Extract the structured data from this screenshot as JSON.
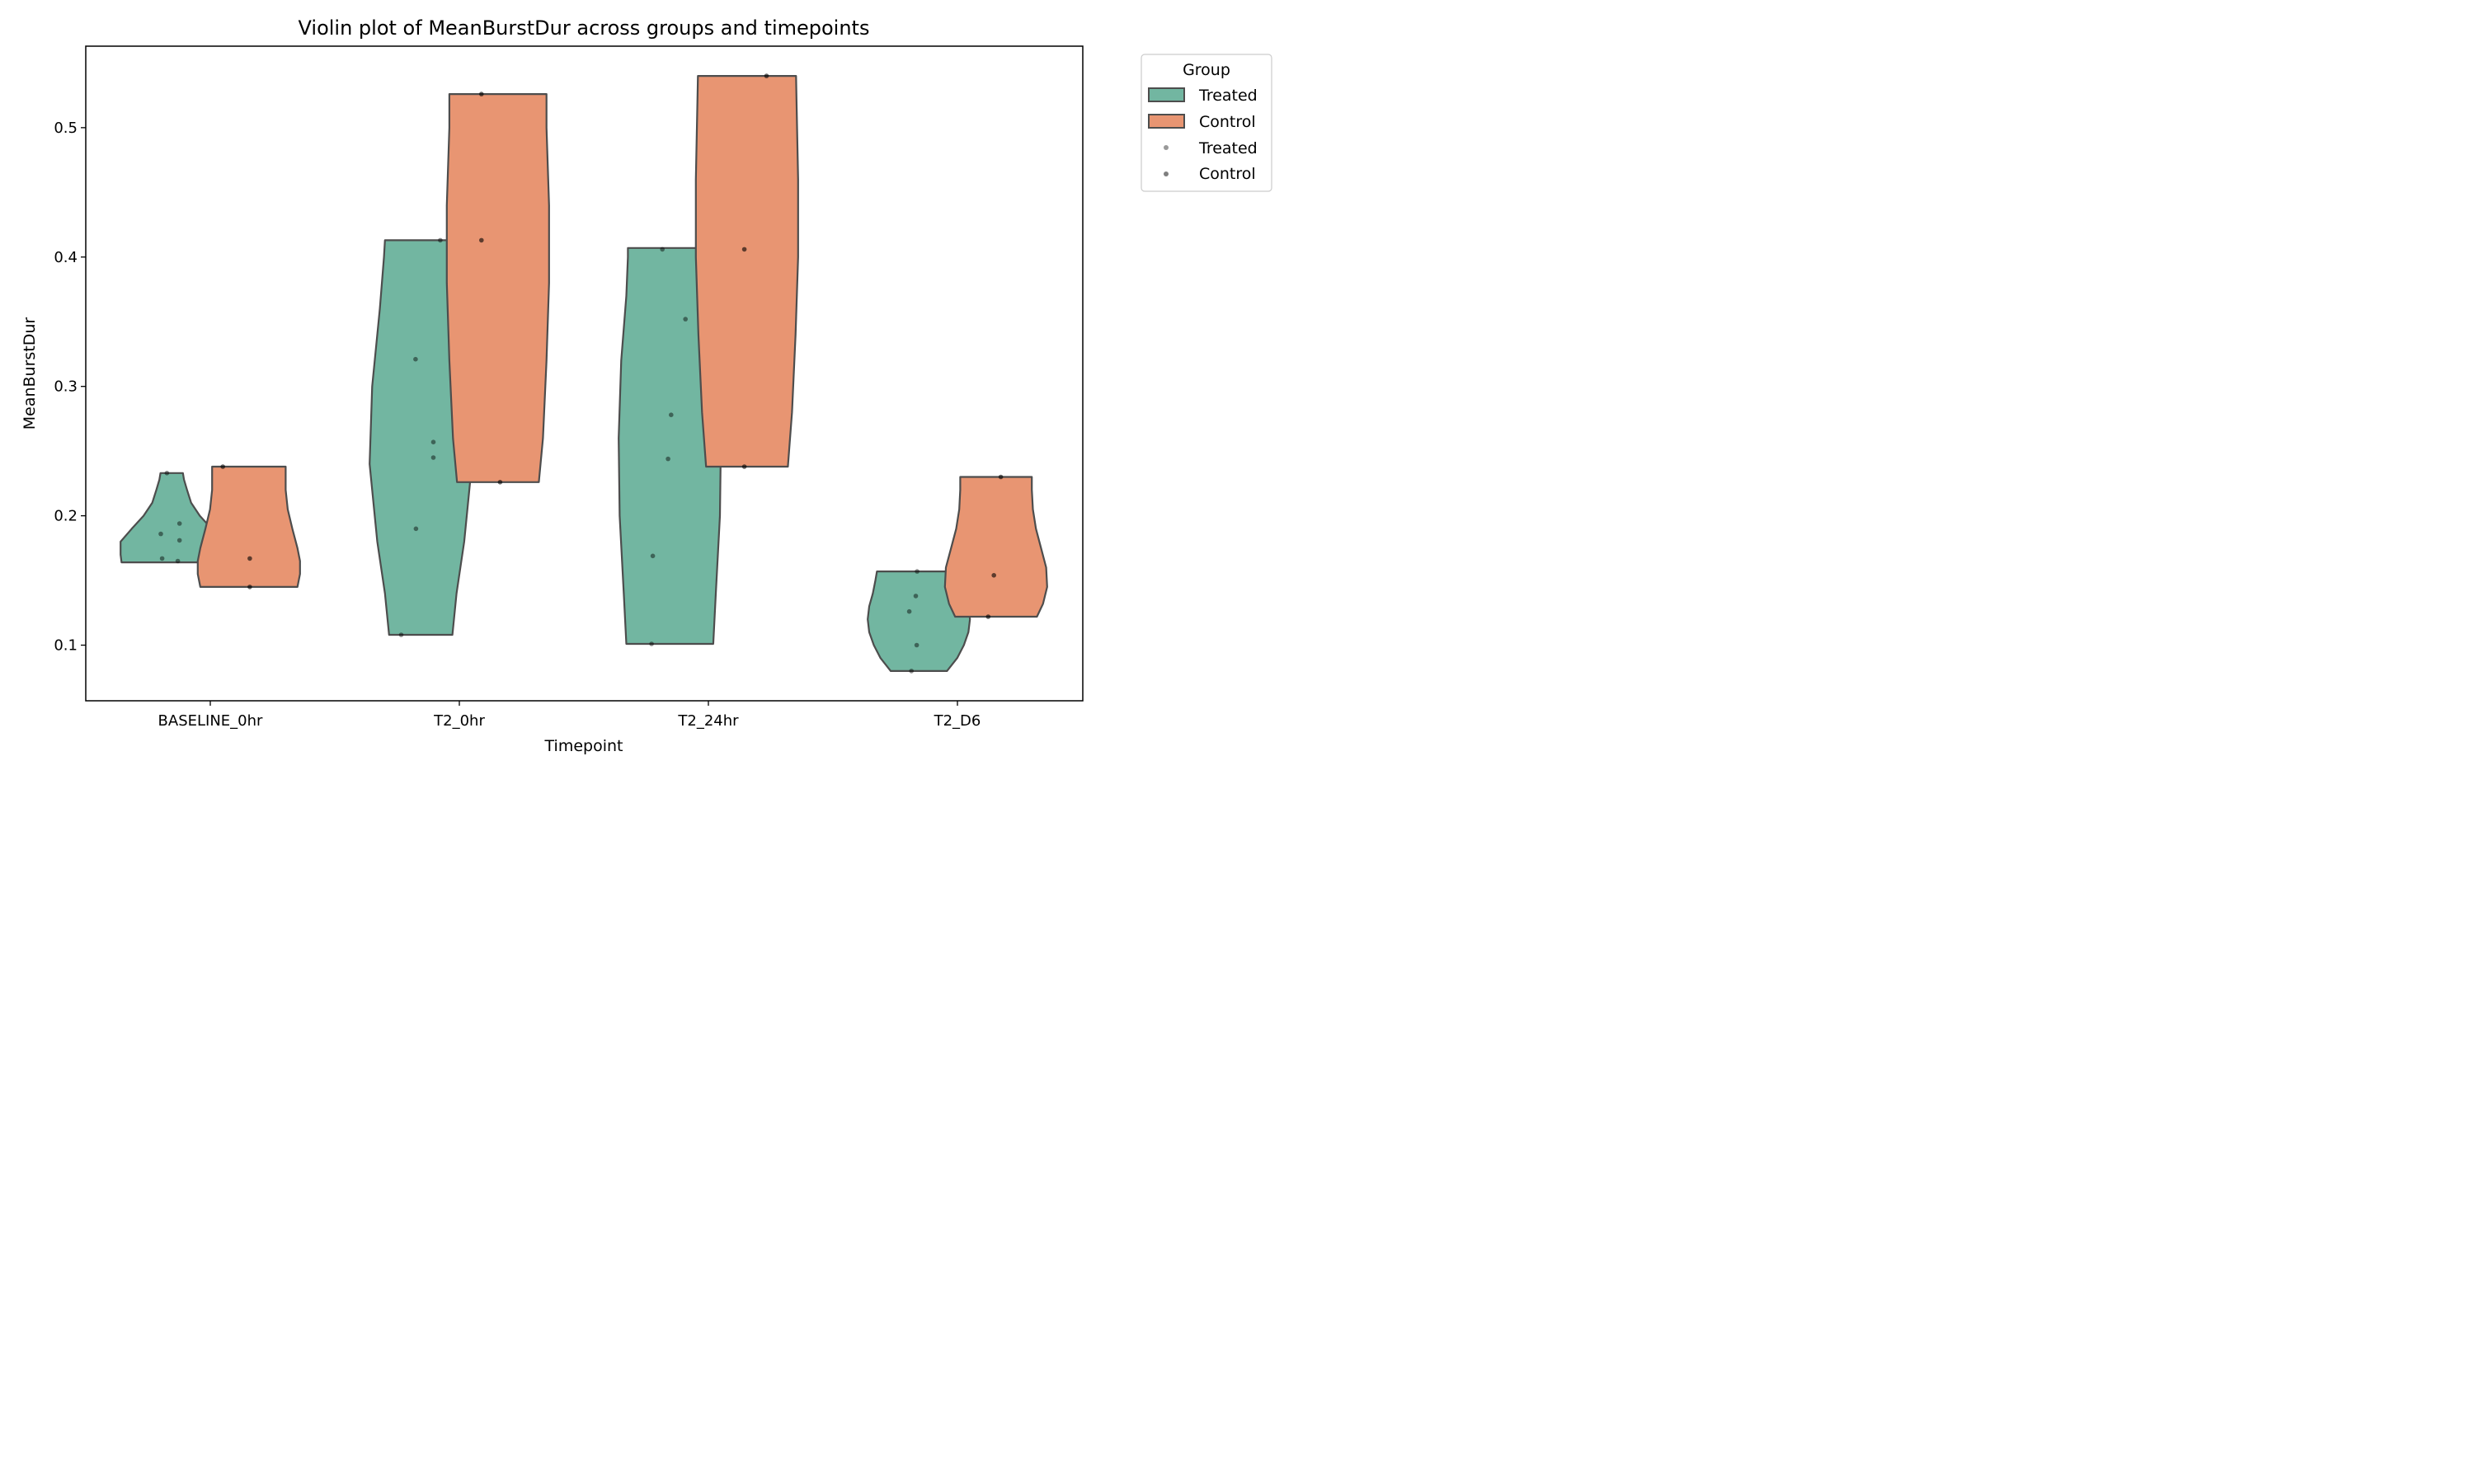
{
  "chart_data": {
    "type": "violin",
    "title": "Violin plot of MeanBurstDur across groups and timepoints",
    "xlabel": "Timepoint",
    "ylabel": "MeanBurstDur",
    "categories": [
      "BASELINE_0hr",
      "T2_0hr",
      "T2_24hr",
      "T2_D6"
    ],
    "ylim": [
      0.057,
      0.563
    ],
    "yticks": [
      0.1,
      0.2,
      0.3,
      0.4,
      0.5
    ],
    "ytick_labels": [
      "0.1",
      "0.2",
      "0.3",
      "0.4",
      "0.5"
    ],
    "grid": false,
    "legend": {
      "title": "Group",
      "placement": "outside-right-top",
      "entries": [
        {
          "label": "Treated",
          "kind": "patch"
        },
        {
          "label": "Control",
          "kind": "patch"
        },
        {
          "label": "Treated",
          "kind": "point"
        },
        {
          "label": "Control",
          "kind": "point"
        }
      ]
    },
    "series": [
      {
        "name": "Treated",
        "color": "#72b6a1",
        "violins": [
          {
            "category": "BASELINE_0hr",
            "min": 0.164,
            "max": 0.233,
            "profile": [
              [
                0.164,
                0.98
              ],
              [
                0.17,
                1.0
              ],
              [
                0.18,
                1.0
              ],
              [
                0.19,
                0.78
              ],
              [
                0.2,
                0.55
              ],
              [
                0.21,
                0.38
              ],
              [
                0.22,
                0.3
              ],
              [
                0.228,
                0.24
              ],
              [
                0.233,
                0.22
              ]
            ],
            "points": [
              [
                -0.25,
                0.186
              ],
              [
                0.18,
                0.194
              ],
              [
                0.18,
                0.181
              ],
              [
                -0.22,
                0.167
              ],
              [
                0.14,
                0.165
              ],
              [
                -0.11,
                0.233
              ]
            ]
          },
          {
            "category": "T2_0hr",
            "min": 0.108,
            "max": 0.413,
            "profile": [
              [
                0.108,
                0.62
              ],
              [
                0.14,
                0.7
              ],
              [
                0.18,
                0.85
              ],
              [
                0.24,
                1.0
              ],
              [
                0.3,
                0.95
              ],
              [
                0.36,
                0.8
              ],
              [
                0.4,
                0.72
              ],
              [
                0.413,
                0.7
              ]
            ],
            "points": [
              [
                -0.45,
                0.108
              ],
              [
                -0.11,
                0.19
              ],
              [
                0.29,
                0.245
              ],
              [
                0.29,
                0.257
              ],
              [
                -0.12,
                0.321
              ],
              [
                0.45,
                0.413
              ]
            ]
          },
          {
            "category": "T2_24hr",
            "min": 0.101,
            "max": 0.407,
            "profile": [
              [
                0.101,
                0.85
              ],
              [
                0.14,
                0.9
              ],
              [
                0.2,
                0.98
              ],
              [
                0.26,
                1.0
              ],
              [
                0.32,
                0.95
              ],
              [
                0.37,
                0.85
              ],
              [
                0.4,
                0.82
              ],
              [
                0.407,
                0.82
              ]
            ],
            "points": [
              [
                -0.42,
                0.101
              ],
              [
                -0.39,
                0.169
              ],
              [
                -0.04,
                0.244
              ],
              [
                0.03,
                0.278
              ],
              [
                0.36,
                0.352
              ],
              [
                -0.17,
                0.406
              ]
            ]
          },
          {
            "category": "T2_D6",
            "min": 0.08,
            "max": 0.157,
            "profile": [
              [
                0.08,
                0.55
              ],
              [
                0.09,
                0.75
              ],
              [
                0.1,
                0.88
              ],
              [
                0.11,
                0.97
              ],
              [
                0.12,
                1.0
              ],
              [
                0.13,
                0.97
              ],
              [
                0.14,
                0.9
              ],
              [
                0.15,
                0.85
              ],
              [
                0.157,
                0.82
              ]
            ],
            "points": [
              [
                -0.17,
                0.08
              ],
              [
                -0.05,
                0.1
              ],
              [
                -0.22,
                0.126
              ],
              [
                -0.07,
                0.138
              ],
              [
                -0.04,
                0.157
              ]
            ]
          }
        ]
      },
      {
        "name": "Control",
        "color": "#e89572",
        "violins": [
          {
            "category": "BASELINE_0hr",
            "min": 0.145,
            "max": 0.238,
            "profile": [
              [
                0.145,
                0.95
              ],
              [
                0.155,
                1.0
              ],
              [
                0.165,
                1.0
              ],
              [
                0.175,
                0.95
              ],
              [
                0.19,
                0.85
              ],
              [
                0.205,
                0.76
              ],
              [
                0.22,
                0.72
              ],
              [
                0.238,
                0.72
              ]
            ],
            "points": [
              [
                0.02,
                0.145
              ],
              [
                0.02,
                0.167
              ],
              [
                -0.6,
                0.238
              ]
            ]
          },
          {
            "category": "T2_0hr",
            "min": 0.226,
            "max": 0.526,
            "profile": [
              [
                0.226,
                0.8
              ],
              [
                0.26,
                0.88
              ],
              [
                0.32,
                0.95
              ],
              [
                0.38,
                1.0
              ],
              [
                0.44,
                1.0
              ],
              [
                0.5,
                0.95
              ],
              [
                0.526,
                0.95
              ]
            ],
            "points": [
              [
                0.05,
                0.226
              ],
              [
                -0.38,
                0.413
              ],
              [
                -0.38,
                0.526
              ]
            ]
          },
          {
            "category": "T2_24hr",
            "min": 0.238,
            "max": 0.54,
            "profile": [
              [
                0.238,
                0.8
              ],
              [
                0.28,
                0.88
              ],
              [
                0.34,
                0.95
              ],
              [
                0.4,
                1.0
              ],
              [
                0.46,
                1.0
              ],
              [
                0.52,
                0.97
              ],
              [
                0.54,
                0.96
              ]
            ],
            "points": [
              [
                -0.06,
                0.238
              ],
              [
                -0.06,
                0.406
              ],
              [
                0.45,
                0.54
              ]
            ]
          },
          {
            "category": "T2_D6",
            "min": 0.122,
            "max": 0.23,
            "profile": [
              [
                0.122,
                0.8
              ],
              [
                0.132,
                0.92
              ],
              [
                0.145,
                1.0
              ],
              [
                0.16,
                0.98
              ],
              [
                0.175,
                0.88
              ],
              [
                0.19,
                0.78
              ],
              [
                0.205,
                0.72
              ],
              [
                0.22,
                0.7
              ],
              [
                0.23,
                0.7
              ]
            ],
            "points": [
              [
                -0.18,
                0.122
              ],
              [
                -0.05,
                0.154
              ],
              [
                0.11,
                0.23
              ]
            ]
          }
        ]
      }
    ]
  }
}
